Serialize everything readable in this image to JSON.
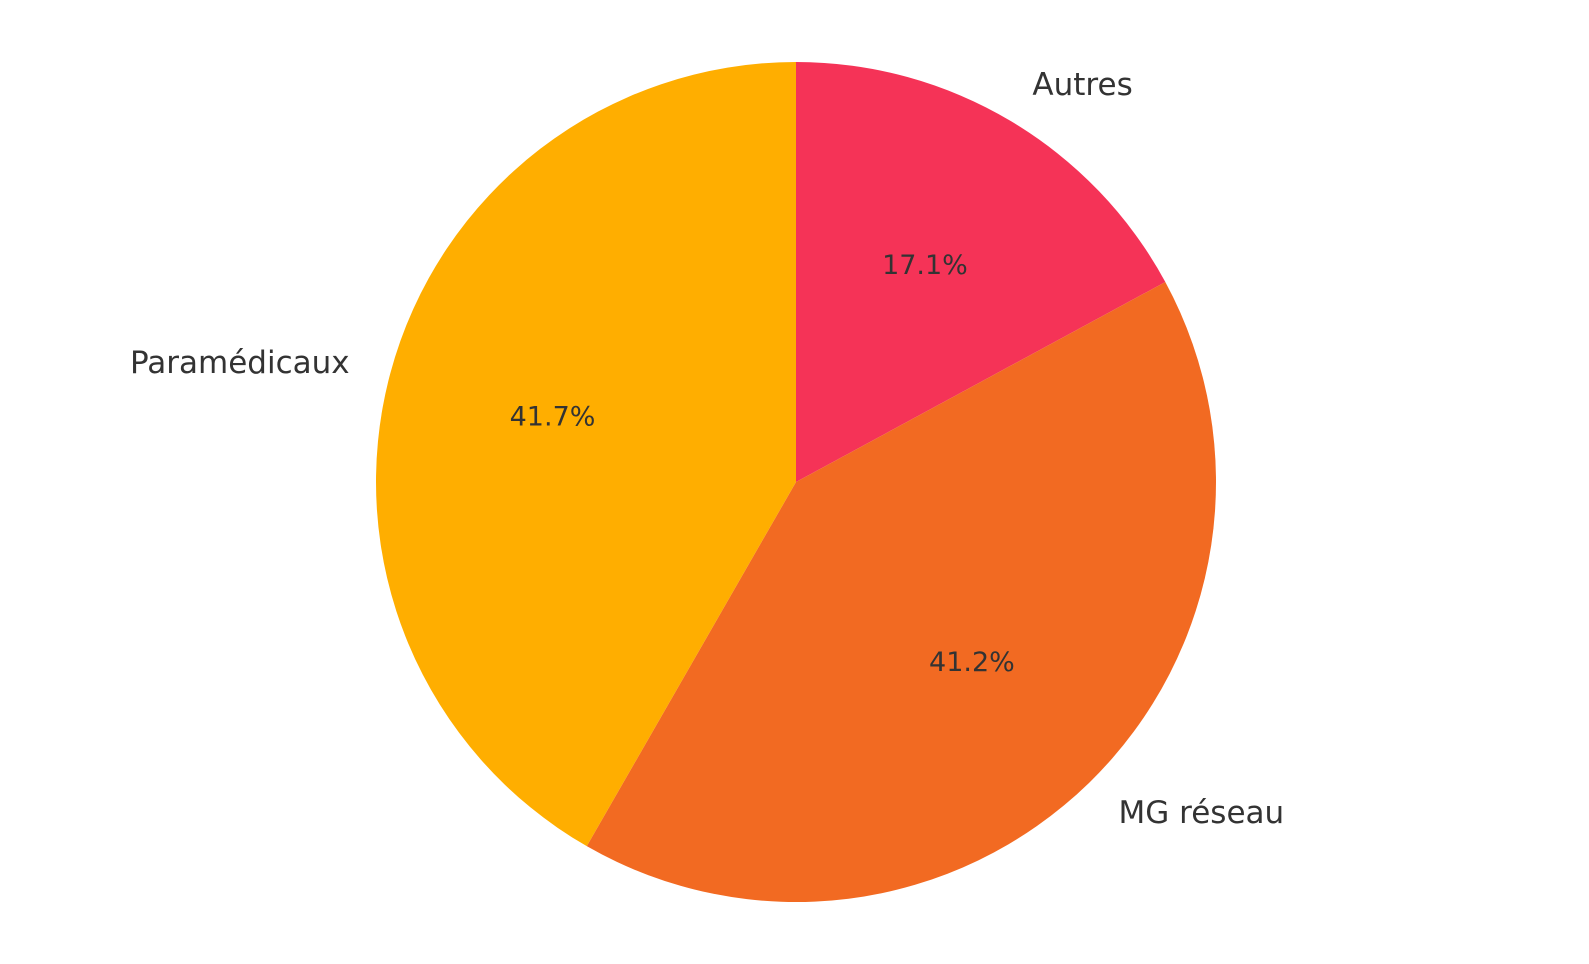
{
  "chart_data": {
    "type": "pie",
    "categories": [
      "Autres",
      "MG réseau",
      "Paramédicaux"
    ],
    "values": [
      17.1,
      41.2,
      41.7
    ],
    "value_labels": [
      "17.1%",
      "41.2%",
      "41.7%"
    ],
    "colors": [
      "#F53357",
      "#F26A22",
      "#FFAE00"
    ],
    "start_angle_deg": 90,
    "direction": "clockwise",
    "title": "",
    "legend": "none"
  }
}
